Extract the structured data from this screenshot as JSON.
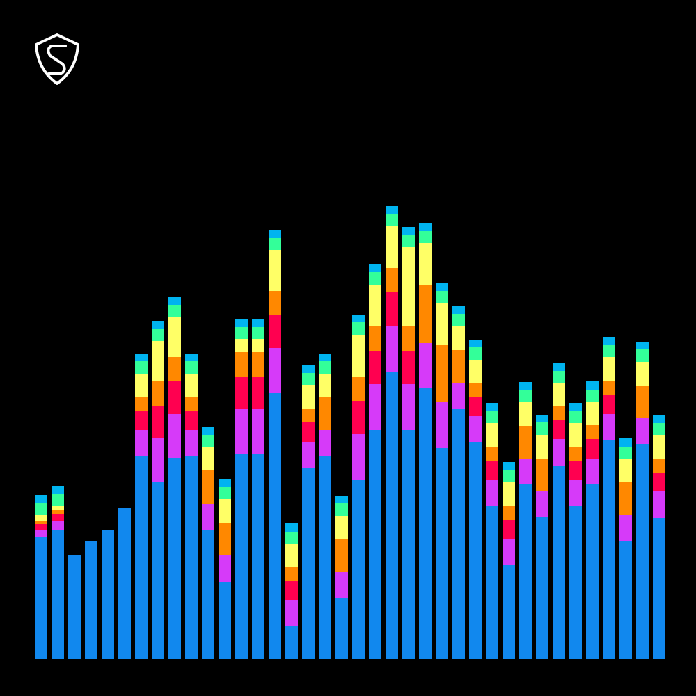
{
  "chart_data": {
    "type": "stacked_bar",
    "categories": [
      null,
      null,
      null,
      null,
      null,
      null,
      null,
      null,
      null,
      null,
      null,
      null,
      null,
      null,
      null,
      null,
      null,
      null,
      null,
      null,
      null,
      null,
      null,
      null,
      null,
      null,
      null,
      null,
      null,
      null,
      null,
      null,
      null,
      null,
      null,
      null,
      null,
      null
    ],
    "ylim": [
      0,
      947
    ],
    "series": [
      {
        "color": "#1188ee",
        "values": [
          176,
          185,
          149,
          169,
          186,
          217,
          292,
          254,
          289,
          292,
          186,
          111,
          294,
          294,
          382,
          47,
          275,
          292,
          88,
          257,
          329,
          413,
          329,
          389,
          303,
          359,
          312,
          220,
          135,
          251,
          204,
          278,
          220,
          251,
          315,
          170,
          309,
          203
        ]
      },
      {
        "color": "#d63af9",
        "values": [
          10,
          14,
          0,
          0,
          0,
          0,
          37,
          63,
          63,
          37,
          37,
          38,
          65,
          65,
          65,
          38,
          37,
          37,
          37,
          66,
          66,
          66,
          66,
          65,
          66,
          38,
          37,
          37,
          38,
          37,
          37,
          38,
          37,
          37,
          37,
          37,
          37,
          38
        ]
      },
      {
        "color": "#ff0050",
        "values": [
          8,
          9,
          0,
          0,
          0,
          0,
          27,
          47,
          47,
          27,
          0,
          0,
          47,
          47,
          47,
          27,
          28,
          0,
          0,
          48,
          48,
          48,
          48,
          0,
          0,
          0,
          27,
          28,
          27,
          0,
          0,
          27,
          28,
          28,
          28,
          0,
          0,
          27
        ]
      },
      {
        "color": "#ff8800",
        "values": [
          5,
          6,
          0,
          0,
          0,
          0,
          20,
          35,
          35,
          20,
          48,
          47,
          35,
          35,
          35,
          20,
          20,
          47,
          48,
          35,
          35,
          35,
          35,
          84,
          83,
          47,
          20,
          20,
          20,
          47,
          47,
          20,
          20,
          20,
          20,
          47,
          47,
          20
        ]
      },
      {
        "color": "#ffff66",
        "values": [
          8,
          6,
          0,
          0,
          0,
          0,
          34,
          58,
          57,
          34,
          34,
          34,
          19,
          19,
          59,
          34,
          34,
          34,
          33,
          60,
          60,
          60,
          114,
          60,
          60,
          34,
          34,
          34,
          34,
          34,
          34,
          34,
          34,
          34,
          34,
          34,
          34,
          34
        ]
      },
      {
        "color": "#33ff99",
        "values": [
          18,
          17,
          0,
          0,
          0,
          0,
          18,
          17,
          18,
          18,
          17,
          18,
          17,
          17,
          17,
          17,
          17,
          18,
          18,
          18,
          18,
          17,
          17,
          17,
          17,
          18,
          18,
          18,
          18,
          18,
          18,
          17,
          18,
          17,
          17,
          17,
          18,
          17
        ]
      },
      {
        "color": "#00b4f0",
        "values": [
          11,
          12,
          0,
          0,
          0,
          0,
          11,
          12,
          11,
          11,
          12,
          11,
          12,
          12,
          12,
          12,
          12,
          11,
          11,
          11,
          11,
          12,
          12,
          12,
          12,
          11,
          11,
          11,
          11,
          11,
          11,
          12,
          11,
          12,
          12,
          12,
          11,
          12
        ]
      }
    ]
  }
}
